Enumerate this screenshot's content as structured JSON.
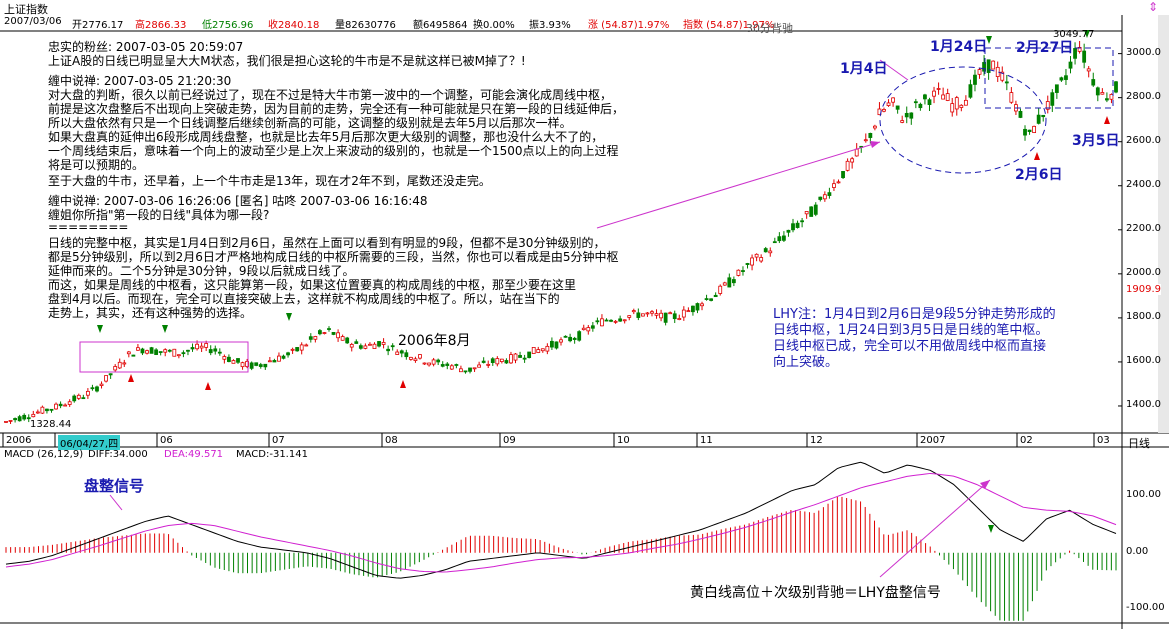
{
  "window_title": "上证指数",
  "quote": {
    "date": "2007/03/06",
    "open": "开2776.17",
    "high": "高2866.33",
    "low": "低2756.96",
    "close": "收2840.18",
    "volume": "量82630776",
    "amount": "额6495864",
    "turnover": "换0.00%",
    "amplitude": "振3.93%",
    "change": "涨 (54.87)1.97%",
    "index": "指数 (54.87)1.97%"
  },
  "comments": [
    "忠实的粉丝:   2007-03-05 20:59:07",
    "    上证A股的日线已明显呈大大M状态，我们很是担心这轮的牛市是不是就这样已被M掉了？!",
    "缠中说禅: 2007-03-05 21:20:30",
    "    对大盘的判断，很久以前已经说过了，现在不过是特大牛市第一波中的一个调整，可能会演化成周线中枢，",
    "前提是这次盘整后不出现向上突破走势，因为目前的走势，完全还有一种可能就是只在第一段的日线延伸后，",
    "所以大盘依然有只是一个日线调整后继续创新高的可能，这调整的级别就是去年5月以后那次一样。",
    "    如果大盘真的延伸出6段形成周线盘整，也就是比去年5月后那次更大级别的调整，那也没什么大不了的，",
    "一个周线结束后，意味着一个向上的波动至少是上次上来波动的级别的，也就是一个1500点以上的向上过程",
    "将是可以预期的。",
    "    至于大盘的牛市，还早着，上一个牛市走是13年，现在才2年不到，尾数还没走完。",
    "缠中说禅: 2007-03-06 16:26:06 [匿名] 咕咚   2007-03-06 16:16:48",
    "    缠姐你所指\"第一段的日线\"具体为哪一段?",
    "========",
    "    日线的完整中枢，其实是1月4日到2月6日，虽然在上面可以看到有明显的9段，但都不是30分钟级别的，",
    "都是5分钟级别，所以到2月6日才严格地构成日线的中枢所需要的三段，当然，你也可以看成是由5分钟中枢",
    "延伸而来的。二个5分钟是30分钟，9段以后就成日线了。",
    "    而这，如果是周线的中枢看，这只能算第一段，如果这位置要真的构成周线的中枢，那至少要在这里",
    "盘到4月以后。而现在，完全可以直接突破上去，这样就不构成周线的中枢了。所以，站在当下的",
    "走势上，其实，还有这种强势的选择。"
  ],
  "annotations": {
    "jan4": "1月4日",
    "jan24": "1月24日",
    "feb27": "2月27日",
    "feb6": "2月6日",
    "mar5": "3月5日",
    "aug2006": "2006年8月",
    "macd_signal": "盘整信号",
    "macd_bottom": "黄白线高位＋次级别背驰＝LHY盘整信号",
    "top_partial": "30分背驰",
    "high_value": "3049.77",
    "low_value": "1328.44",
    "last_price": "1909.9"
  },
  "lhy_note": [
    "LHY注：1月4日到2月6日是9段5分钟走势形成的",
    "日线中枢，1月24日到3月5日是日线的笔中枢。",
    "日线中枢已成，完全可以不用做周线中枢而直接",
    "向上突破。"
  ],
  "macd_header": {
    "name": "MACD (26,12,9)",
    "diff": "DIFF:34.000",
    "dea": "DEA:49.571",
    "macd": "MACD:-31.141"
  },
  "chart_data": {
    "type": "candlestick",
    "title": "上证指数",
    "price_ticks": [
      "3000.0",
      "2800.0",
      "2600.0",
      "2400.0",
      "2200.0",
      "2000.0",
      "1800.0",
      "1600.0",
      "1400.0"
    ],
    "price_tick_values": [
      3000,
      2800,
      2600,
      2400,
      2200,
      2000,
      1800,
      1600,
      1400
    ],
    "ylim": [
      1300,
      3080
    ],
    "x_ticks": [
      "2006",
      "06/04/27,四",
      "06",
      "07",
      "08",
      "09",
      "10",
      "11",
      "12",
      "2007",
      "02",
      "03"
    ],
    "period_label": "日线",
    "price_path": [
      1328,
      1345,
      1360,
      1380,
      1395,
      1420,
      1440,
      1470,
      1520,
      1580,
      1640,
      1660,
      1650,
      1645,
      1640,
      1660,
      1665,
      1650,
      1610,
      1590,
      1580,
      1600,
      1620,
      1640,
      1680,
      1720,
      1740,
      1700,
      1680,
      1670,
      1690,
      1660,
      1640,
      1620,
      1600,
      1590,
      1580,
      1560,
      1580,
      1600,
      1610,
      1620,
      1640,
      1660,
      1680,
      1700,
      1720,
      1760,
      1790,
      1800,
      1810,
      1820,
      1810,
      1800,
      1810,
      1840,
      1880,
      1910,
      1960,
      2010,
      2060,
      2100,
      2150,
      2200,
      2250,
      2300,
      2380,
      2450,
      2520,
      2600,
      2720,
      2780,
      2700,
      2760,
      2800,
      2820,
      2760,
      2800,
      2900,
      2960,
      2880,
      2760,
      2620,
      2720,
      2800,
      2900,
      3049,
      2900,
      2800,
      2840
    ],
    "macd_ticks": [
      "100.00",
      "0.00",
      "-100.00"
    ],
    "macd_tick_values": [
      100,
      0,
      -100
    ],
    "macd_ylim": [
      -115,
      160
    ],
    "diff": [
      -20,
      -15,
      -5,
      10,
      25,
      40,
      55,
      65,
      50,
      35,
      20,
      10,
      5,
      0,
      -10,
      -25,
      -40,
      -45,
      -40,
      -30,
      -15,
      -10,
      -5,
      0,
      -5,
      -10,
      0,
      10,
      20,
      30,
      40,
      55,
      70,
      90,
      110,
      120,
      150,
      160,
      140,
      155,
      145,
      120,
      80,
      40,
      20,
      60,
      75,
      50,
      34
    ],
    "dea": [
      -25,
      -20,
      -12,
      0,
      12,
      25,
      38,
      48,
      52,
      48,
      38,
      28,
      20,
      12,
      4,
      -6,
      -18,
      -28,
      -33,
      -34,
      -30,
      -25,
      -18,
      -12,
      -9,
      -8,
      -5,
      0,
      8,
      15,
      24,
      34,
      45,
      58,
      72,
      85,
      100,
      115,
      125,
      135,
      140,
      135,
      120,
      100,
      80,
      75,
      73,
      65,
      49.571
    ]
  }
}
